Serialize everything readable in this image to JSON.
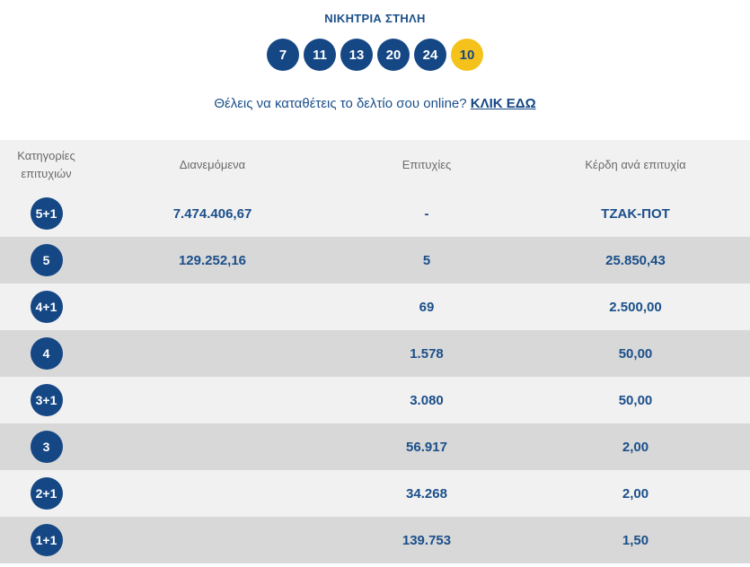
{
  "header": {
    "title": "ΝΙΚΗΤΡΙΑ ΣΤΗΛΗ",
    "numbers": [
      "7",
      "11",
      "13",
      "20",
      "24"
    ],
    "joker": "10"
  },
  "cta": {
    "text": "Θέλεις να καταθέτεις το δελτίο σου online?",
    "link_label": "ΚΛΙΚ ΕΔΩ"
  },
  "table": {
    "headers": {
      "category_line1": "Κατηγορίες",
      "category_line2": "επιτυχιών",
      "distributed": "Διανεμόμενα",
      "winners": "Επιτυχίες",
      "prize": "Κέρδη ανά επιτυχία"
    },
    "rows": [
      {
        "category": "5+1",
        "distributed": "7.474.406,67",
        "winners": "-",
        "prize": "ΤΖΑΚ-ΠΟΤ"
      },
      {
        "category": "5",
        "distributed": "129.252,16",
        "winners": "5",
        "prize": "25.850,43"
      },
      {
        "category": "4+1",
        "distributed": "",
        "winners": "69",
        "prize": "2.500,00"
      },
      {
        "category": "4",
        "distributed": "",
        "winners": "1.578",
        "prize": "50,00"
      },
      {
        "category": "3+1",
        "distributed": "",
        "winners": "3.080",
        "prize": "50,00"
      },
      {
        "category": "3",
        "distributed": "",
        "winners": "56.917",
        "prize": "2,00"
      },
      {
        "category": "2+1",
        "distributed": "",
        "winners": "34.268",
        "prize": "2,00"
      },
      {
        "category": "1+1",
        "distributed": "",
        "winners": "139.753",
        "prize": "1,50"
      }
    ]
  },
  "colors": {
    "brand_blue": "#154785",
    "joker_yellow": "#f5c21b",
    "row_light": "#f1f1f1",
    "row_dark": "#d8d8d8"
  }
}
